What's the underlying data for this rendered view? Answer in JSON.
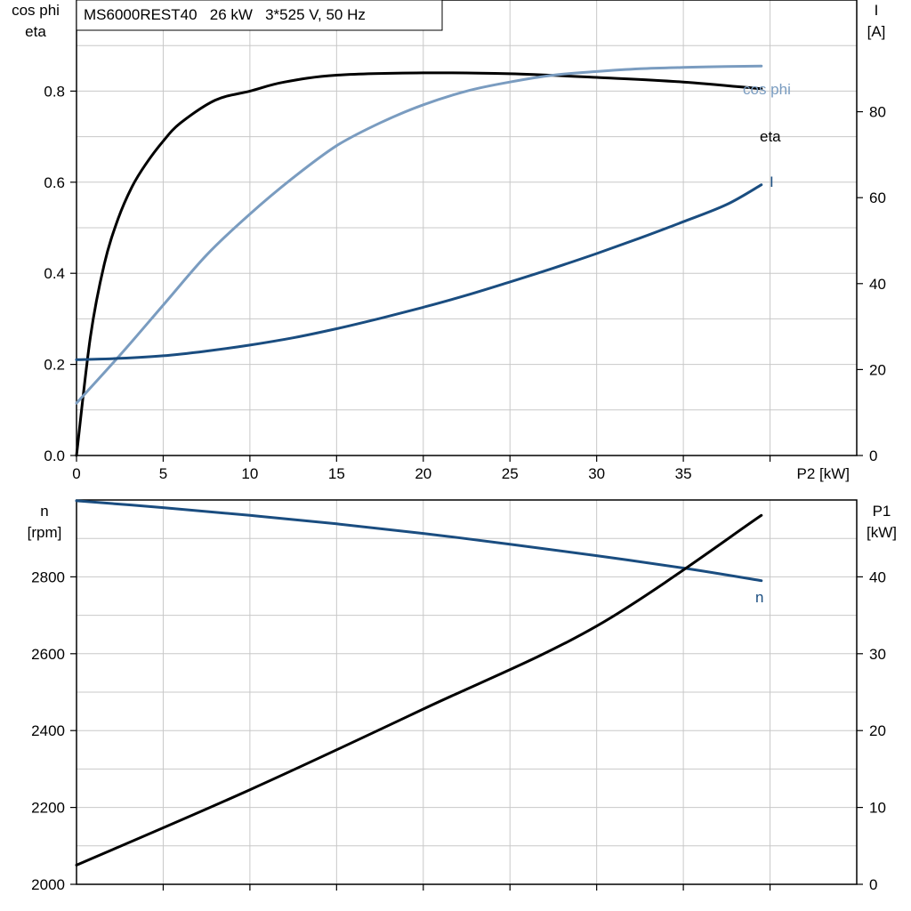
{
  "chart_data": [
    {
      "type": "line",
      "title": "MS6000REST40   26 kW   3*525 V, 50 Hz",
      "xlabel": "P2 [kW]",
      "xlim": [
        0,
        45
      ],
      "xticks": [
        0,
        5,
        10,
        15,
        20,
        25,
        30,
        35
      ],
      "left_axis": {
        "label_lines": [
          "cos phi",
          "eta"
        ],
        "lim": [
          0,
          1.0
        ],
        "ticks": [
          "0.0",
          "0.2",
          "0.4",
          "0.6",
          "0.8"
        ]
      },
      "right_axis": {
        "label_lines": [
          "I",
          "[A]"
        ],
        "lim": [
          0,
          106
        ],
        "ticks": [
          "0",
          "20",
          "40",
          "60",
          "80"
        ]
      },
      "grid": true,
      "series": [
        {
          "name": "eta",
          "axis": "left",
          "color": "#000000",
          "x": [
            0,
            0.8,
            1.6,
            2.4,
            3.2,
            4,
            5,
            6,
            8,
            10,
            12,
            15,
            20,
            25,
            30,
            35,
            39.5
          ],
          "y": [
            0,
            0.26,
            0.42,
            0.52,
            0.59,
            0.64,
            0.69,
            0.73,
            0.78,
            0.8,
            0.82,
            0.835,
            0.84,
            0.838,
            0.83,
            0.82,
            0.805
          ]
        },
        {
          "name": "cos phi",
          "axis": "left",
          "color": "#7a9cc0",
          "x": [
            0,
            2.5,
            5,
            7.5,
            10,
            12.5,
            15,
            17.5,
            20,
            22.5,
            25,
            27.5,
            30,
            32.5,
            35,
            37.5,
            39.5
          ],
          "y": [
            0.115,
            0.22,
            0.33,
            0.44,
            0.53,
            0.61,
            0.68,
            0.73,
            0.77,
            0.8,
            0.82,
            0.835,
            0.843,
            0.849,
            0.852,
            0.854,
            0.855
          ]
        },
        {
          "name": "I",
          "axis": "right",
          "color": "#1a4d80",
          "x": [
            0,
            2.5,
            5,
            7.5,
            10,
            12.5,
            15,
            17.5,
            20,
            22.5,
            25,
            27.5,
            30,
            32.5,
            35,
            37.5,
            39.5
          ],
          "y": [
            22.3,
            22.6,
            23.2,
            24.3,
            25.7,
            27.4,
            29.5,
            31.9,
            34.5,
            37.3,
            40.4,
            43.6,
            47.0,
            50.6,
            54.4,
            58.4,
            63.0
          ]
        }
      ],
      "series_labels": {
        "eta": "eta",
        "cos_phi": "cos phi",
        "I": "I"
      }
    },
    {
      "type": "line",
      "xlim": [
        0,
        45
      ],
      "left_axis": {
        "label_lines": [
          "n",
          "[rpm]"
        ],
        "lim": [
          2000,
          3000
        ],
        "ticks": [
          "2000",
          "2200",
          "2400",
          "2600",
          "2800"
        ]
      },
      "right_axis": {
        "label_lines": [
          "P1",
          "[kW]"
        ],
        "lim": [
          0,
          50
        ],
        "ticks": [
          "0",
          "10",
          "20",
          "30",
          "40"
        ]
      },
      "grid": true,
      "series": [
        {
          "name": "n",
          "axis": "left",
          "color": "#1a4d80",
          "x": [
            0,
            5,
            10,
            15,
            20,
            25,
            30,
            35,
            39.5
          ],
          "y": [
            2998,
            2980,
            2960,
            2938,
            2913,
            2885,
            2855,
            2823,
            2790
          ]
        },
        {
          "name": "P1",
          "axis": "right",
          "color": "#000000",
          "x": [
            0,
            10,
            20,
            30,
            39.5
          ],
          "y": [
            2.5,
            12.3,
            22.8,
            33.6,
            48.0
          ]
        }
      ],
      "series_labels": {
        "n": "n"
      }
    }
  ]
}
